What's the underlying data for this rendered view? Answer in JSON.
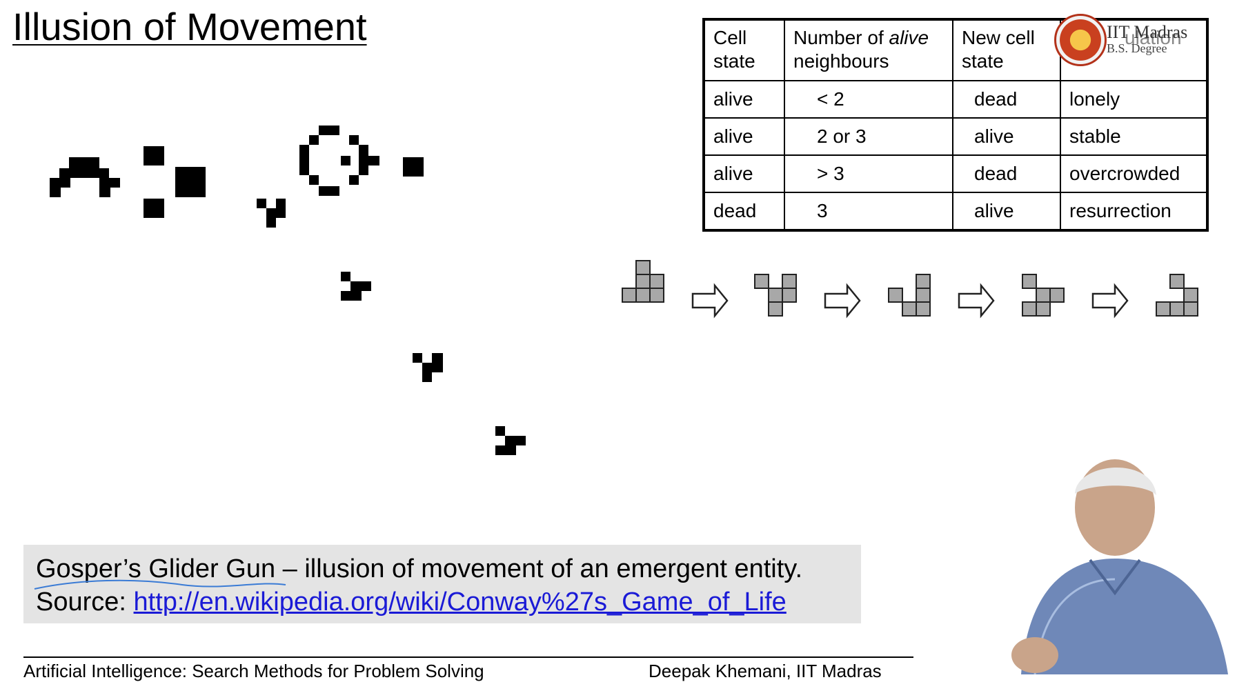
{
  "title": "Illusion of Movement",
  "rules_table": {
    "headers": [
      "Cell state",
      "Number of alive neighbours",
      "New cell state",
      ""
    ],
    "header_parts": {
      "cell_state_1": "Cell",
      "cell_state_2": "state",
      "number_of": "Number of ",
      "alive": "alive",
      "neighbours": "neighbours",
      "new_cell": "New cell",
      "new_state": "state",
      "obscured": "ulation"
    },
    "rows": [
      {
        "state": "alive",
        "neighbours": "< 2",
        "new_state": "dead",
        "reason": "lonely"
      },
      {
        "state": "alive",
        "neighbours": "2 or 3",
        "new_state": "alive",
        "reason": "stable"
      },
      {
        "state": "alive",
        "neighbours": "> 3",
        "new_state": "dead",
        "reason": "overcrowded"
      },
      {
        "state": "dead",
        "neighbours": "3",
        "new_state": "alive",
        "reason": "resurrection"
      }
    ]
  },
  "logo": {
    "name": "IIT Madras",
    "sub": "B.S. Degree"
  },
  "caption": {
    "line1": "Gosper’s Glider Gun – illusion of movement of an emergent entity.",
    "source_label": "Source: ",
    "source_url": "http://en.wikipedia.org/wiki/Conway%27s_Game_of_Life"
  },
  "footer": {
    "left": "Artificial Intelligence: Search Methods for Problem Solving",
    "right": "Deepak Khemani, IIT Madras"
  },
  "colors": {
    "caption_bg": "#e4e4e4",
    "link": "#1a1ad6",
    "glider_cell": "#a8a8a8",
    "gun_cell": "#000000"
  },
  "icons": {
    "arrow": "hollow-right-arrow",
    "logo": "iit-madras-seal"
  }
}
